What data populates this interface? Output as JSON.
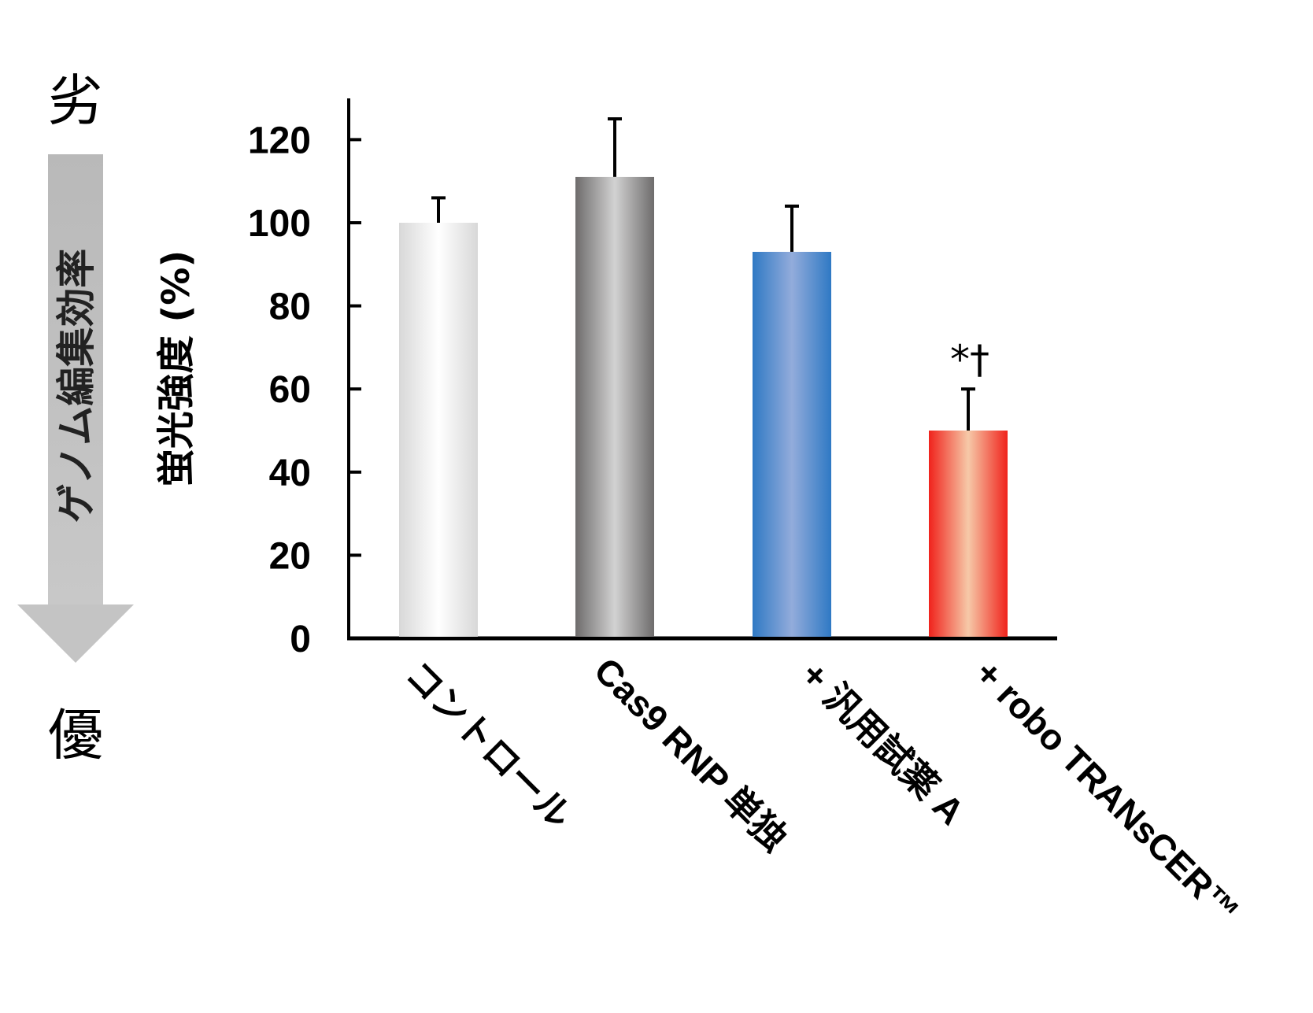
{
  "scale": {
    "top_label": "劣",
    "bottom_label": "優",
    "arrow_label": "ゲノム編集効率"
  },
  "chart_data": {
    "type": "bar",
    "categories": [
      "コントロール",
      "Cas9 RNP 単独",
      "+ 汎用試薬 A",
      "+ robo TRANsCER™"
    ],
    "values": [
      100,
      111,
      93,
      50
    ],
    "errors": [
      6,
      14,
      11,
      10
    ],
    "annotations": [
      "",
      "",
      "",
      "*†"
    ],
    "ylabel": "蛍光強度 (%)",
    "xlabel": "",
    "ylim": [
      0,
      130
    ],
    "yticks": [
      0,
      20,
      40,
      60,
      80,
      100,
      120
    ],
    "grid": false,
    "bar_colors": [
      {
        "edge": "#d8d8d8",
        "center": "#ffffff"
      },
      {
        "edge": "#6e6c6c",
        "center": "#d2d2d2"
      },
      {
        "edge": "#2f79c4",
        "center": "#93acdb"
      },
      {
        "edge": "#f0231c",
        "center": "#f6c9a8"
      }
    ]
  }
}
